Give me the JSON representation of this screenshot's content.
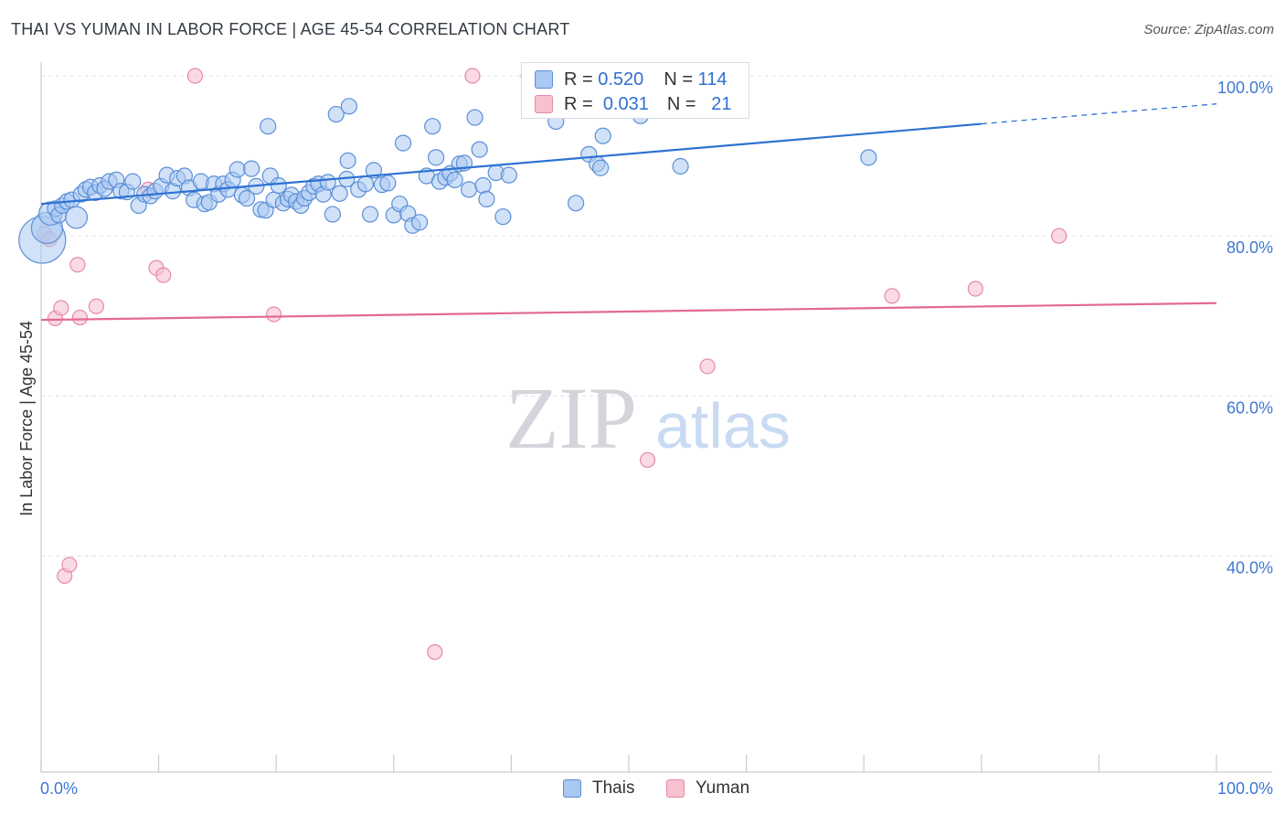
{
  "header": {
    "title": "THAI VS YUMAN IN LABOR FORCE | AGE 45-54 CORRELATION CHART",
    "source": "Source: ZipAtlas.com"
  },
  "watermark": {
    "zip": "ZIP",
    "atlas": "atlas"
  },
  "colors": {
    "thai_fill": "#a9c8f2",
    "thai_stroke": "#5b8fd6",
    "thai_line": "#2e72d2",
    "yuman_fill": "#f7c1d0",
    "yuman_stroke": "#e68aa6",
    "yuman_line": "#e36a92",
    "tick_label": "#3f78d0",
    "grid": "#dde1e8"
  },
  "stats_legend": {
    "thai": {
      "r_label": "R =",
      "r_value": "0.520",
      "n_label": "N =",
      "n_value": "114"
    },
    "yuman": {
      "r_label": "R =",
      "r_value": "0.031",
      "n_label": "N =",
      "n_value": "21"
    }
  },
  "chart_data": {
    "type": "scatter",
    "title": "THAI VS YUMAN IN LABOR FORCE | AGE 45-54 CORRELATION CHART",
    "xlabel": "",
    "ylabel": "In Labor Force | Age 45-54",
    "xlim": [
      0,
      100
    ],
    "ylim": [
      13,
      104
    ],
    "x_tick_labels": [
      "0.0%",
      "100.0%"
    ],
    "y_ticks": [
      40,
      60,
      80,
      100
    ],
    "y_tick_labels": [
      "40.0%",
      "60.0%",
      "80.0%",
      "100.0%"
    ],
    "grid": true,
    "legend": [
      "Thais",
      "Yuman"
    ],
    "series": [
      {
        "name": "Thais",
        "r": 0.52,
        "n": 114,
        "trend": {
          "x0": 0,
          "y0": 84.0,
          "x1": 80,
          "y1": 94.0,
          "dashed_to_x": 100,
          "dashed_to_y": 96.5
        },
        "points": [
          [
            0.1,
            79.5,
            3
          ],
          [
            0.5,
            81.0,
            2
          ],
          [
            0.8,
            82.8,
            1.5
          ],
          [
            1.2,
            83.4,
            1
          ],
          [
            1.5,
            82.6,
            1
          ],
          [
            1.8,
            83.8,
            1
          ],
          [
            2.2,
            84.3,
            1
          ],
          [
            2.6,
            84.5,
            1
          ],
          [
            3.0,
            82.3,
            1.4
          ],
          [
            3.4,
            85.2,
            1
          ],
          [
            3.8,
            85.8,
            1
          ],
          [
            4.2,
            86.1,
            1
          ],
          [
            4.6,
            85.4,
            1
          ],
          [
            5.0,
            86.3,
            1
          ],
          [
            5.4,
            85.9,
            1
          ],
          [
            5.8,
            86.8,
            1
          ],
          [
            6.4,
            87.0,
            1
          ],
          [
            6.8,
            85.6,
            1
          ],
          [
            7.3,
            85.5,
            1
          ],
          [
            7.8,
            86.8,
            1
          ],
          [
            8.3,
            83.8,
            1
          ],
          [
            8.8,
            85.2,
            1
          ],
          [
            9.3,
            85.0,
            1
          ],
          [
            9.7,
            85.6,
            1
          ],
          [
            10.2,
            86.2,
            1
          ],
          [
            10.7,
            87.6,
            1
          ],
          [
            11.2,
            85.6,
            1
          ],
          [
            11.6,
            87.2,
            1
          ],
          [
            12.2,
            87.5,
            1
          ],
          [
            12.6,
            86.0,
            1
          ],
          [
            13.0,
            84.5,
            1
          ],
          [
            13.6,
            86.8,
            1
          ],
          [
            13.9,
            84.0,
            1
          ],
          [
            14.3,
            84.2,
            1
          ],
          [
            14.7,
            86.5,
            1
          ],
          [
            15.1,
            85.2,
            1
          ],
          [
            15.5,
            86.5,
            1
          ],
          [
            15.9,
            85.8,
            1
          ],
          [
            16.3,
            87.0,
            1
          ],
          [
            16.7,
            88.3,
            1
          ],
          [
            17.1,
            85.1,
            1
          ],
          [
            17.5,
            84.7,
            1
          ],
          [
            17.9,
            88.4,
            1
          ],
          [
            18.3,
            86.2,
            1
          ],
          [
            18.7,
            83.3,
            1
          ],
          [
            19.1,
            83.2,
            1
          ],
          [
            19.5,
            87.5,
            1
          ],
          [
            19.3,
            93.7,
            1
          ],
          [
            19.8,
            84.5,
            1
          ],
          [
            20.2,
            86.3,
            1
          ],
          [
            20.6,
            84.1,
            1
          ],
          [
            21.0,
            84.6,
            1
          ],
          [
            21.3,
            85.1,
            1
          ],
          [
            21.7,
            84.3,
            1
          ],
          [
            22.1,
            83.8,
            1
          ],
          [
            22.4,
            84.7,
            1
          ],
          [
            22.8,
            85.4,
            1
          ],
          [
            23.2,
            86.2,
            1
          ],
          [
            23.6,
            86.5,
            1
          ],
          [
            24.0,
            85.2,
            1
          ],
          [
            24.4,
            86.7,
            1
          ],
          [
            24.8,
            82.7,
            1
          ],
          [
            25.4,
            85.3,
            1
          ],
          [
            25.1,
            95.2,
            1
          ],
          [
            26.0,
            87.1,
            1
          ],
          [
            26.1,
            89.4,
            1
          ],
          [
            26.2,
            96.2,
            1
          ],
          [
            27.0,
            85.8,
            1
          ],
          [
            27.6,
            86.5,
            1
          ],
          [
            28.0,
            82.7,
            1
          ],
          [
            28.3,
            88.2,
            1
          ],
          [
            29.0,
            86.4,
            1
          ],
          [
            29.5,
            86.6,
            1
          ],
          [
            30.0,
            82.6,
            1
          ],
          [
            30.5,
            84.0,
            1
          ],
          [
            30.8,
            91.6,
            1
          ],
          [
            31.2,
            82.8,
            1
          ],
          [
            31.6,
            81.3,
            1
          ],
          [
            32.2,
            81.7,
            1
          ],
          [
            32.8,
            87.5,
            1
          ],
          [
            33.3,
            93.7,
            1
          ],
          [
            33.6,
            89.8,
            1
          ],
          [
            33.9,
            86.8,
            1
          ],
          [
            34.4,
            87.3,
            1
          ],
          [
            34.8,
            87.8,
            1
          ],
          [
            35.2,
            87.0,
            1
          ],
          [
            35.6,
            89.0,
            1
          ],
          [
            36.0,
            89.1,
            1
          ],
          [
            36.4,
            85.8,
            1
          ],
          [
            36.9,
            94.8,
            1
          ],
          [
            37.3,
            90.8,
            1
          ],
          [
            37.6,
            86.3,
            1
          ],
          [
            37.9,
            84.6,
            1
          ],
          [
            38.7,
            87.9,
            1
          ],
          [
            39.3,
            82.4,
            1
          ],
          [
            39.8,
            87.6,
            1
          ],
          [
            41.5,
            100.0,
            1
          ],
          [
            42.0,
            98.8,
            1
          ],
          [
            43.0,
            96.0,
            1
          ],
          [
            43.8,
            94.3,
            1
          ],
          [
            45.5,
            84.1,
            1
          ],
          [
            46.6,
            90.2,
            1
          ],
          [
            47.3,
            89.0,
            1
          ],
          [
            47.6,
            88.5,
            1
          ],
          [
            47.8,
            92.5,
            1
          ],
          [
            51.0,
            95.0,
            1
          ],
          [
            52.0,
            96.0,
            1
          ],
          [
            54.4,
            88.7,
            1
          ],
          [
            70.4,
            89.8,
            1
          ]
        ]
      },
      {
        "name": "Yuman",
        "r": 0.031,
        "n": 21,
        "trend": {
          "x0": 0,
          "y0": 69.5,
          "x1": 100,
          "y1": 71.6
        },
        "points": [
          [
            0.3,
            80.3,
            1
          ],
          [
            0.7,
            79.6,
            1
          ],
          [
            1.2,
            69.7,
            1
          ],
          [
            1.7,
            71.0,
            1
          ],
          [
            2.0,
            37.5,
            1
          ],
          [
            2.4,
            38.9,
            1
          ],
          [
            3.1,
            76.4,
            1
          ],
          [
            3.3,
            69.8,
            1
          ],
          [
            4.7,
            71.2,
            1
          ],
          [
            9.1,
            85.8,
            1
          ],
          [
            9.8,
            76.0,
            1
          ],
          [
            10.4,
            75.1,
            1
          ],
          [
            13.1,
            100.0,
            1
          ],
          [
            19.8,
            70.2,
            1
          ],
          [
            33.5,
            28.0,
            1
          ],
          [
            36.7,
            100.0,
            1
          ],
          [
            51.6,
            52.0,
            1
          ],
          [
            56.7,
            63.7,
            1
          ],
          [
            72.4,
            72.5,
            1
          ],
          [
            79.5,
            73.4,
            1
          ],
          [
            86.6,
            80.0,
            1
          ]
        ]
      }
    ]
  }
}
